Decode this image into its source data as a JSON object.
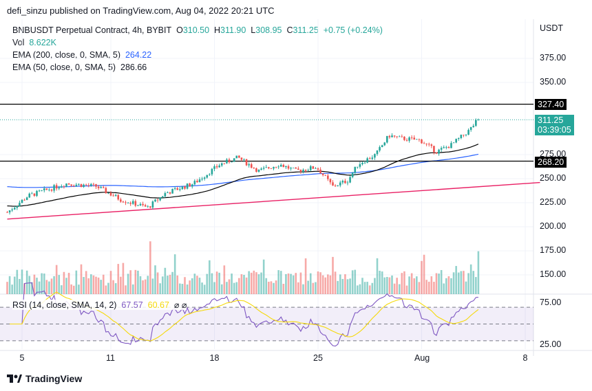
{
  "publisher": "defi_sinzu published on TradingView.com, Aug 04, 2022 20:21 UTC",
  "legend": {
    "symbol": "BNBUSDT Perpetual Contract, 4h, BYBIT",
    "o_label": "O",
    "o": "310.50",
    "h_label": "H",
    "h": "311.90",
    "l_label": "L",
    "l": "308.95",
    "c_label": "C",
    "c": "311.25",
    "change": "+0.75 (+0.24%)",
    "vol_label": "Vol",
    "vol": "8.622K",
    "ema200_label": "EMA (200, close, 0, SMA, 5)",
    "ema200": "264.22",
    "ema50_label": "EMA (50, close, 0, SMA, 5)",
    "ema50": "286.66",
    "rsi_label": "RSI (14, close, SMA, 14, 2)",
    "rsi": "67.57",
    "rsi_sma": "60.67",
    "na1": "⌀",
    "na2": "⌀"
  },
  "axis": {
    "currency": "USDT",
    "price_ticks": [
      "375.00",
      "350.00",
      "275.00",
      "250.00",
      "225.00",
      "200.00",
      "175.00",
      "150.00"
    ],
    "price_values": [
      375,
      350,
      275,
      250,
      225,
      200,
      175,
      150
    ],
    "rsi_ticks": [
      "75.00",
      "25.00"
    ],
    "dates": [
      {
        "label": "5",
        "day": 1
      },
      {
        "label": "11",
        "day": 7
      },
      {
        "label": "18",
        "day": 14
      },
      {
        "label": "25",
        "day": 21
      },
      {
        "label": "Aug",
        "day": 28
      },
      {
        "label": "8",
        "day": 35
      }
    ]
  },
  "levels": {
    "resistance": "327.40",
    "resistance_value": 327.4,
    "support": "268.20",
    "support_value": 268.2,
    "current": "311.25",
    "current_value": 311.25,
    "countdown": "03:39:05"
  },
  "trendline": {
    "start": [
      0,
      208
    ],
    "end": [
      36,
      246
    ]
  },
  "price_path": [
    [
      0,
      215
    ],
    [
      1.4,
      232
    ],
    [
      4,
      245
    ],
    [
      6,
      242
    ],
    [
      7.7,
      228
    ],
    [
      9.5,
      220
    ],
    [
      10.7,
      235
    ],
    [
      12.6,
      245
    ],
    [
      13.5,
      255
    ],
    [
      14.4,
      265
    ],
    [
      15.6,
      272
    ],
    [
      17,
      258
    ],
    [
      18.4,
      265
    ],
    [
      19.5,
      258
    ],
    [
      20.9,
      262
    ],
    [
      22,
      242
    ],
    [
      23,
      248
    ],
    [
      23.7,
      265
    ],
    [
      24.9,
      275
    ],
    [
      25.8,
      295
    ],
    [
      26.5,
      292
    ],
    [
      27.9,
      290
    ],
    [
      29,
      278
    ],
    [
      30,
      285
    ],
    [
      31.2,
      300
    ],
    [
      31.8,
      311
    ]
  ],
  "colors": {
    "up": "#26a69a",
    "down": "#ef5350",
    "ema200": "#2962ff",
    "ema50": "#000000",
    "trend": "#e91e63",
    "rsi": "#7e57c2",
    "rsi_sma": "#f5d90a"
  },
  "brand": "TradingView"
}
